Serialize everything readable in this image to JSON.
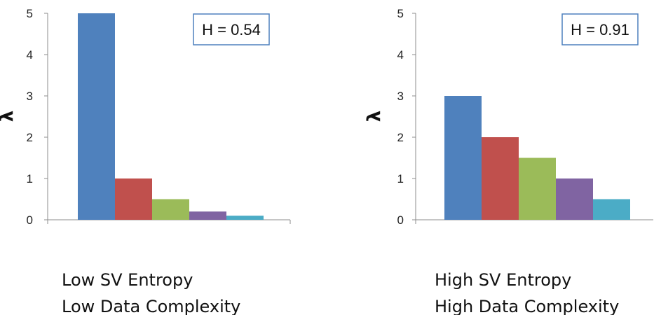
{
  "chart_data": [
    {
      "type": "bar",
      "annotation": "H = 0.54",
      "ylabel": "λ",
      "ylim": [
        0,
        5
      ],
      "yticks": [
        0,
        1,
        2,
        3,
        4,
        5
      ],
      "values": [
        5,
        1,
        0.5,
        0.2,
        0.1
      ],
      "colors": [
        "#4F81BD",
        "#C0504D",
        "#9BBB59",
        "#8064A2",
        "#4BACC6"
      ],
      "caption": [
        "Low SV Entropy",
        "Low Data Complexity"
      ]
    },
    {
      "type": "bar",
      "annotation": "H = 0.91",
      "ylabel": "λ",
      "ylim": [
        0,
        5
      ],
      "yticks": [
        0,
        1,
        2,
        3,
        4,
        5
      ],
      "values": [
        3,
        2,
        1.5,
        1,
        0.5
      ],
      "colors": [
        "#4F81BD",
        "#C0504D",
        "#9BBB59",
        "#8064A2",
        "#4BACC6"
      ],
      "caption": [
        "High SV Entropy",
        "High Data Complexity"
      ]
    }
  ]
}
